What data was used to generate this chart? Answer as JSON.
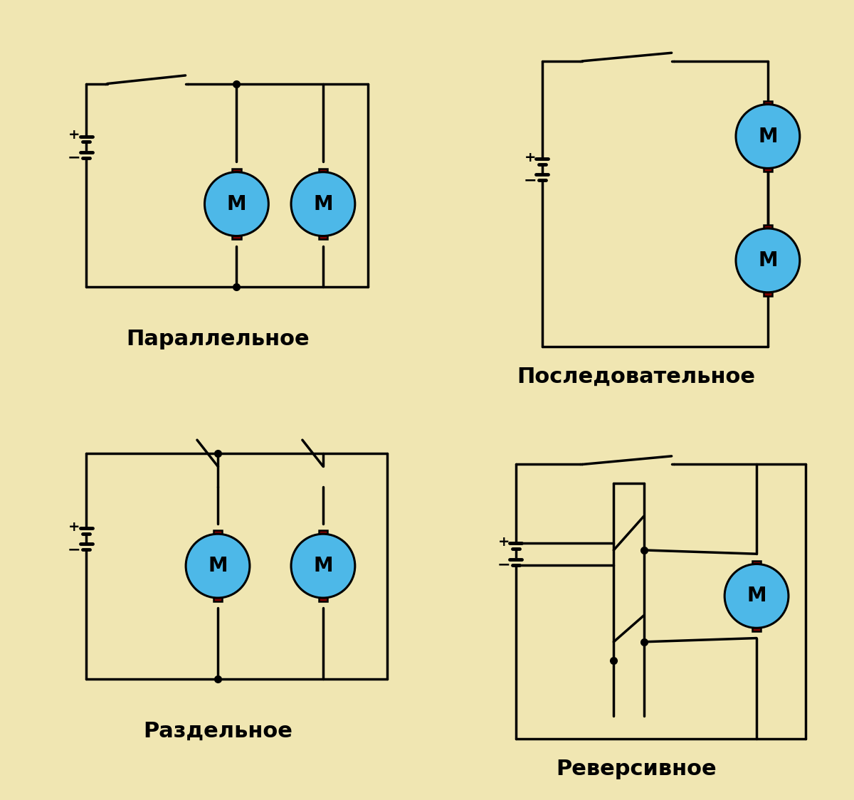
{
  "bg_color": "#f0e6b2",
  "line_color": "#000000",
  "motor_fill": "#4db8e8",
  "brush_color": "#800000",
  "line_width": 2.5,
  "title_fontsize": 22,
  "motor_fontsize": 20,
  "labels": [
    "Параллельное",
    "Последовательное",
    "Раздельное",
    "Реверсивное"
  ]
}
